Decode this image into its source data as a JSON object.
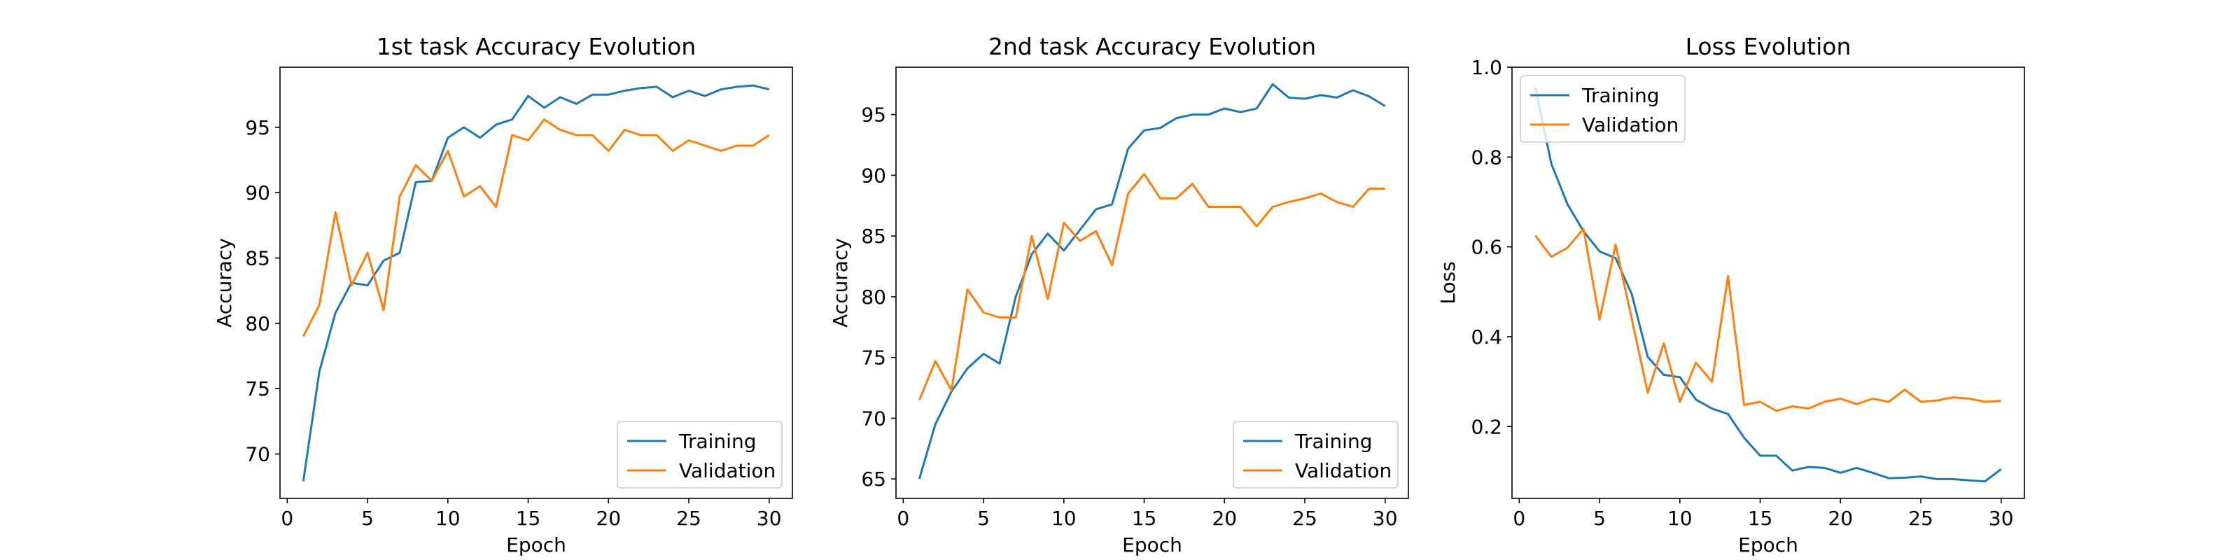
{
  "chart_data": [
    {
      "type": "line",
      "title": "1st task Accuracy Evolution",
      "xlabel": "Epoch",
      "ylabel": "Accuracy",
      "xlim": [
        -0.45,
        31.45
      ],
      "ylim": [
        66.6,
        99.6
      ],
      "xticks": [
        0,
        5,
        10,
        15,
        20,
        25,
        30
      ],
      "yticks": [
        70,
        75,
        80,
        85,
        90,
        95
      ],
      "legend": "lower right",
      "series": [
        {
          "name": "Training",
          "color": "#1f77b4",
          "x": [
            1,
            2,
            3,
            4,
            5,
            6,
            7,
            8,
            9,
            10,
            11,
            12,
            13,
            14,
            15,
            16,
            17,
            18,
            19,
            20,
            21,
            22,
            23,
            24,
            25,
            26,
            27,
            28,
            29,
            30
          ],
          "y": [
            67.9,
            76.3,
            80.8,
            83.1,
            82.9,
            84.8,
            85.4,
            90.8,
            90.9,
            94.2,
            95.0,
            94.2,
            95.2,
            95.6,
            97.4,
            96.5,
            97.3,
            96.8,
            97.5,
            97.5,
            97.8,
            98.0,
            98.1,
            97.3,
            97.8,
            97.4,
            97.9,
            98.1,
            98.2,
            97.9
          ]
        },
        {
          "name": "Validation",
          "color": "#ff7f0e",
          "x": [
            1,
            2,
            3,
            4,
            5,
            6,
            7,
            8,
            9,
            10,
            11,
            12,
            13,
            14,
            15,
            16,
            17,
            18,
            19,
            20,
            21,
            22,
            23,
            24,
            25,
            26,
            27,
            28,
            29,
            30
          ],
          "y": [
            79.0,
            81.4,
            88.5,
            82.9,
            85.4,
            81.0,
            89.7,
            92.1,
            90.9,
            93.2,
            89.7,
            90.5,
            88.9,
            94.4,
            94.0,
            95.6,
            94.8,
            94.4,
            94.4,
            93.2,
            94.8,
            94.4,
            94.4,
            93.2,
            94.0,
            93.6,
            93.2,
            93.6,
            93.6,
            94.4
          ]
        }
      ]
    },
    {
      "type": "line",
      "title": "2nd task Accuracy Evolution",
      "xlabel": "Epoch",
      "ylabel": "Accuracy",
      "xlim": [
        -0.45,
        31.45
      ],
      "ylim": [
        63.4,
        98.9
      ],
      "xticks": [
        0,
        5,
        10,
        15,
        20,
        25,
        30
      ],
      "yticks": [
        65,
        70,
        75,
        80,
        85,
        90,
        95
      ],
      "legend": "lower right",
      "series": [
        {
          "name": "Training",
          "color": "#1f77b4",
          "x": [
            1,
            2,
            3,
            4,
            5,
            6,
            7,
            8,
            9,
            10,
            11,
            12,
            13,
            14,
            15,
            16,
            17,
            18,
            19,
            20,
            21,
            22,
            23,
            24,
            25,
            26,
            27,
            28,
            29,
            30
          ],
          "y": [
            65.0,
            69.5,
            72.2,
            74.1,
            75.3,
            74.5,
            80.0,
            83.5,
            85.2,
            83.8,
            85.5,
            87.2,
            87.6,
            92.2,
            93.7,
            93.9,
            94.7,
            95.0,
            95.0,
            95.5,
            95.2,
            95.5,
            97.5,
            96.4,
            96.3,
            96.6,
            96.4,
            97.0,
            96.5,
            95.7
          ]
        },
        {
          "name": "Validation",
          "color": "#ff7f0e",
          "x": [
            1,
            2,
            3,
            4,
            5,
            6,
            7,
            8,
            9,
            10,
            11,
            12,
            13,
            14,
            15,
            16,
            17,
            18,
            19,
            20,
            21,
            22,
            23,
            24,
            25,
            26,
            27,
            28,
            29,
            30
          ],
          "y": [
            71.5,
            74.7,
            72.3,
            80.6,
            78.7,
            78.3,
            78.3,
            85.0,
            79.8,
            86.1,
            84.6,
            85.4,
            82.6,
            88.5,
            90.1,
            88.1,
            88.1,
            89.3,
            87.4,
            87.4,
            87.4,
            85.8,
            87.4,
            87.8,
            88.1,
            88.5,
            87.8,
            87.4,
            88.9,
            88.9
          ]
        }
      ]
    },
    {
      "type": "line",
      "title": "Loss Evolution",
      "xlabel": "Epoch",
      "ylabel": "Loss",
      "xlim": [
        -0.45,
        31.45
      ],
      "ylim": [
        0.04,
        1.0
      ],
      "xticks": [
        0,
        5,
        10,
        15,
        20,
        25,
        30
      ],
      "yticks": [
        0.2,
        0.4,
        0.6,
        0.8,
        1.0
      ],
      "ytick_labels": [
        "0.2",
        "0.4",
        "0.6",
        "0.8",
        "1.0"
      ],
      "legend": "upper left",
      "series": [
        {
          "name": "Training",
          "color": "#1f77b4",
          "x": [
            1,
            2,
            3,
            4,
            5,
            6,
            7,
            8,
            9,
            10,
            11,
            12,
            13,
            14,
            15,
            16,
            17,
            18,
            19,
            20,
            21,
            22,
            23,
            24,
            25,
            26,
            27,
            28,
            29,
            30
          ],
          "y": [
            0.955,
            0.785,
            0.695,
            0.635,
            0.59,
            0.575,
            0.495,
            0.355,
            0.315,
            0.31,
            0.26,
            0.24,
            0.228,
            0.175,
            0.135,
            0.135,
            0.102,
            0.11,
            0.108,
            0.097,
            0.108,
            0.097,
            0.085,
            0.086,
            0.089,
            0.083,
            0.083,
            0.08,
            0.078,
            0.105
          ]
        },
        {
          "name": "Validation",
          "color": "#ff7f0e",
          "x": [
            1,
            2,
            3,
            4,
            5,
            6,
            7,
            8,
            9,
            10,
            11,
            12,
            13,
            14,
            15,
            16,
            17,
            18,
            19,
            20,
            21,
            22,
            23,
            24,
            25,
            26,
            27,
            28,
            29,
            30
          ],
          "y": [
            0.625,
            0.578,
            0.598,
            0.64,
            0.438,
            0.605,
            0.44,
            0.275,
            0.385,
            0.255,
            0.342,
            0.3,
            0.535,
            0.248,
            0.255,
            0.235,
            0.245,
            0.24,
            0.255,
            0.262,
            0.25,
            0.262,
            0.255,
            0.282,
            0.255,
            0.258,
            0.265,
            0.262,
            0.255,
            0.257
          ]
        }
      ]
    }
  ]
}
